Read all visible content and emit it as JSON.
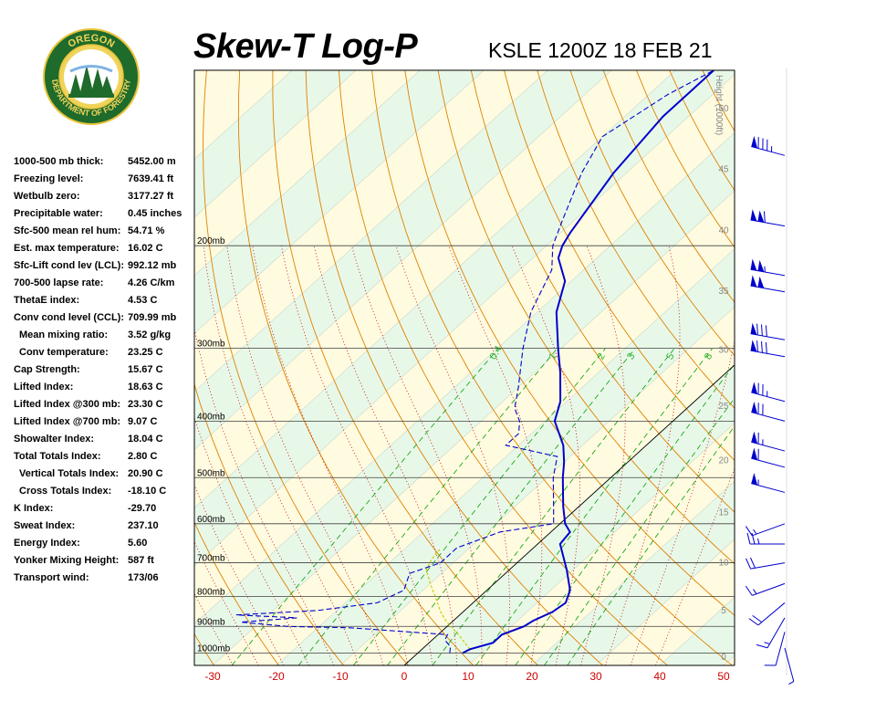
{
  "header": {
    "title": "Skew-T Log-P",
    "station_time": "KSLE 1200Z 18 FEB 21"
  },
  "logo": {
    "text_top": "OREGON",
    "text_bottom": "DEPARTMENT OF FORESTRY"
  },
  "indices": [
    {
      "label": "1000-500 mb thick:",
      "value": "5452.00 m",
      "indent": false
    },
    {
      "label": "Freezing level:",
      "value": "7639.41 ft",
      "indent": false
    },
    {
      "label": "Wetbulb zero:",
      "value": "3177.27 ft",
      "indent": false
    },
    {
      "label": "Precipitable water:",
      "value": "0.45 inches",
      "indent": false
    },
    {
      "label": "Sfc-500 mean rel hum:",
      "value": "54.71 %",
      "indent": false
    },
    {
      "label": "Est. max temperature:",
      "value": "16.02 C",
      "indent": false
    },
    {
      "label": "Sfc-Lift cond lev (LCL):",
      "value": "992.12 mb",
      "indent": false
    },
    {
      "label": "700-500 lapse rate:",
      "value": "4.26 C/km",
      "indent": false
    },
    {
      "label": "ThetaE index:",
      "value": "4.53 C",
      "indent": false
    },
    {
      "label": "Conv cond level (CCL):",
      "value": "709.99 mb",
      "indent": false
    },
    {
      "label": "Mean mixing ratio:",
      "value": "3.52 g/kg",
      "indent": true
    },
    {
      "label": "Conv temperature:",
      "value": "23.25 C",
      "indent": true
    },
    {
      "label": "Cap Strength:",
      "value": "15.67 C",
      "indent": false
    },
    {
      "label": "Lifted Index:",
      "value": "18.63 C",
      "indent": false
    },
    {
      "label": "Lifted Index @300 mb:",
      "value": "23.30 C",
      "indent": false
    },
    {
      "label": "Lifted Index @700 mb:",
      "value": "9.07 C",
      "indent": false
    },
    {
      "label": "Showalter Index:",
      "value": "18.04 C",
      "indent": false
    },
    {
      "label": "Total Totals Index:",
      "value": "2.80 C",
      "indent": false
    },
    {
      "label": "Vertical Totals Index:",
      "value": "20.90 C",
      "indent": true
    },
    {
      "label": "Cross Totals Index:",
      "value": "-18.10 C",
      "indent": true
    },
    {
      "label": "K Index:",
      "value": "-29.70",
      "indent": false
    },
    {
      "label": "Sweat Index:",
      "value": "237.10",
      "indent": false
    },
    {
      "label": "Energy Index:",
      "value": "5.60",
      "indent": false
    },
    {
      "label": "Yonker Mixing Height:",
      "value": "587 ft",
      "indent": false
    },
    {
      "label": "Transport wind:",
      "value": "173/06",
      "indent": false
    }
  ],
  "colors": {
    "temperature": "#0000cc",
    "dewpoint": "#0000cc",
    "parcel": "#cccc00",
    "dry_adiabat": "#e08000",
    "moist_adiabat": "#c00000",
    "mixing_ratio": "#00a000",
    "isobar": "#404040",
    "temp_tick_label": "#cc0000",
    "height_label": "#888888",
    "band_green": "#e8f8e8",
    "band_yellow": "#fffbe0"
  },
  "chart_data": {
    "type": "skew-t",
    "title": "Skew-T Log-P",
    "subtitle": "KSLE 1200Z 18 FEB 21",
    "xlim": [
      -30,
      50
    ],
    "x_ticks": [
      -30,
      -20,
      -10,
      0,
      10,
      20,
      30,
      40,
      50
    ],
    "pressure_range": [
      1050,
      100
    ],
    "isobars": [
      {
        "p": 1000,
        "label": "1000mb"
      },
      {
        "p": 900,
        "label": "900mb"
      },
      {
        "p": 800,
        "label": "800mb"
      },
      {
        "p": 700,
        "label": "700mb"
      },
      {
        "p": 600,
        "label": "600mb"
      },
      {
        "p": 500,
        "label": "500mb"
      },
      {
        "p": 400,
        "label": "400mb"
      },
      {
        "p": 300,
        "label": "300mb"
      },
      {
        "p": 200,
        "label": "200mb"
      }
    ],
    "height_axis_label": "Height (1000ft)",
    "height_ticks": [
      0,
      5,
      10,
      15,
      20,
      25,
      30,
      35,
      40,
      45,
      50
    ],
    "mixing_ratio_labels": [
      "0.4",
      "1",
      "2",
      "3",
      "5",
      "8"
    ],
    "temperature_profile": [
      {
        "p": 1000,
        "t": 7.0
      },
      {
        "p": 985,
        "t": 7.5
      },
      {
        "p": 960,
        "t": 10.0
      },
      {
        "p": 930,
        "t": 10.0
      },
      {
        "p": 900,
        "t": 12.0
      },
      {
        "p": 880,
        "t": 12.5
      },
      {
        "p": 850,
        "t": 14.0
      },
      {
        "p": 820,
        "t": 14.5
      },
      {
        "p": 780,
        "t": 13.0
      },
      {
        "p": 720,
        "t": 9.0
      },
      {
        "p": 650,
        "t": 3.5
      },
      {
        "p": 620,
        "t": 3.0
      },
      {
        "p": 600,
        "t": 0.8
      },
      {
        "p": 560,
        "t": -2.5
      },
      {
        "p": 500,
        "t": -7.5
      },
      {
        "p": 470,
        "t": -10.0
      },
      {
        "p": 440,
        "t": -13.0
      },
      {
        "p": 400,
        "t": -18.5
      },
      {
        "p": 370,
        "t": -21.0
      },
      {
        "p": 330,
        "t": -26.0
      },
      {
        "p": 300,
        "t": -30.5
      },
      {
        "p": 260,
        "t": -37.0
      },
      {
        "p": 230,
        "t": -41.0
      },
      {
        "p": 210,
        "t": -46.0
      },
      {
        "p": 200,
        "t": -47.5
      },
      {
        "p": 190,
        "t": -48.5
      },
      {
        "p": 150,
        "t": -52.0
      },
      {
        "p": 120,
        "t": -54.0
      },
      {
        "p": 100,
        "t": -54.0
      }
    ],
    "dewpoint_profile": [
      {
        "p": 1000,
        "t": 5.0
      },
      {
        "p": 975,
        "t": 4.0
      },
      {
        "p": 950,
        "t": 2.0
      },
      {
        "p": 930,
        "t": 1.5
      },
      {
        "p": 905,
        "t": -15.0
      },
      {
        "p": 900,
        "t": -25.0
      },
      {
        "p": 885,
        "t": -33.0
      },
      {
        "p": 870,
        "t": -25.0
      },
      {
        "p": 860,
        "t": -35.0
      },
      {
        "p": 845,
        "t": -23.0
      },
      {
        "p": 820,
        "t": -15.0
      },
      {
        "p": 780,
        "t": -13.0
      },
      {
        "p": 730,
        "t": -15.0
      },
      {
        "p": 700,
        "t": -12.0
      },
      {
        "p": 660,
        "t": -12.0
      },
      {
        "p": 620,
        "t": -8.0
      },
      {
        "p": 600,
        "t": -1.0
      },
      {
        "p": 560,
        "t": -4.0
      },
      {
        "p": 500,
        "t": -9.0
      },
      {
        "p": 460,
        "t": -12.0
      },
      {
        "p": 440,
        "t": -22.0
      },
      {
        "p": 420,
        "t": -22.0
      },
      {
        "p": 400,
        "t": -24.0
      },
      {
        "p": 380,
        "t": -27.0
      },
      {
        "p": 350,
        "t": -30.0
      },
      {
        "p": 300,
        "t": -36.0
      },
      {
        "p": 260,
        "t": -41.0
      },
      {
        "p": 220,
        "t": -45.0
      },
      {
        "p": 200,
        "t": -49.0
      },
      {
        "p": 180,
        "t": -52.0
      },
      {
        "p": 150,
        "t": -57.0
      },
      {
        "p": 130,
        "t": -60.0
      },
      {
        "p": 110,
        "t": -57.0
      },
      {
        "p": 100,
        "t": -54.0
      }
    ],
    "parcel_profile": [
      {
        "p": 985,
        "t": 7.5
      },
      {
        "p": 930,
        "t": 3.2
      },
      {
        "p": 880,
        "t": -1.2
      },
      {
        "p": 850,
        "t": -3.5
      },
      {
        "p": 800,
        "t": -7.0
      },
      {
        "p": 760,
        "t": -10.0
      },
      {
        "p": 720,
        "t": -13.0
      },
      {
        "p": 690,
        "t": -14.0
      },
      {
        "p": 660,
        "t": -14.5
      }
    ],
    "wind_barbs": [
      {
        "p": 980,
        "dir": 165,
        "speed": 6
      },
      {
        "p": 920,
        "dir": 195,
        "speed": 12
      },
      {
        "p": 870,
        "dir": 210,
        "speed": 15
      },
      {
        "p": 820,
        "dir": 230,
        "speed": 20
      },
      {
        "p": 760,
        "dir": 250,
        "speed": 15
      },
      {
        "p": 700,
        "dir": 260,
        "speed": 20
      },
      {
        "p": 650,
        "dir": 270,
        "speed": 25
      },
      {
        "p": 600,
        "dir": 250,
        "speed": 15
      },
      {
        "p": 530,
        "dir": 285,
        "speed": 55
      },
      {
        "p": 480,
        "dir": 285,
        "speed": 60
      },
      {
        "p": 450,
        "dir": 285,
        "speed": 65
      },
      {
        "p": 400,
        "dir": 285,
        "speed": 70
      },
      {
        "p": 370,
        "dir": 285,
        "speed": 75
      },
      {
        "p": 310,
        "dir": 280,
        "speed": 80
      },
      {
        "p": 290,
        "dir": 280,
        "speed": 80
      },
      {
        "p": 240,
        "dir": 280,
        "speed": 100
      },
      {
        "p": 225,
        "dir": 280,
        "speed": 105
      },
      {
        "p": 185,
        "dir": 280,
        "speed": 110
      },
      {
        "p": 140,
        "dir": 285,
        "speed": 85
      }
    ]
  }
}
